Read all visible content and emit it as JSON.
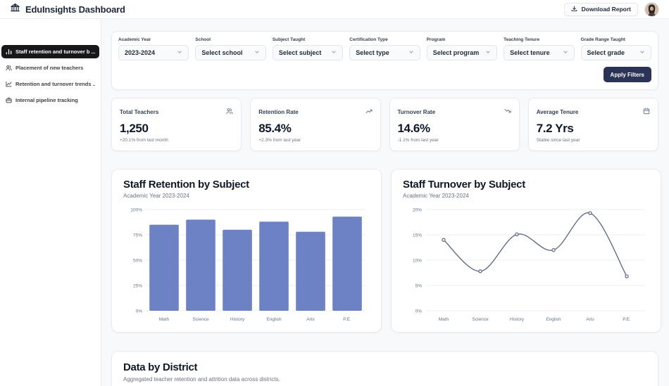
{
  "header": {
    "title": "EduInsights Dashboard",
    "download_button": "Download Report"
  },
  "sidebar": {
    "items": [
      {
        "label": "Staff retention and turnover b ...",
        "icon": "bar-chart-icon",
        "active": true
      },
      {
        "label": "Placement of new teachers",
        "icon": "users-icon",
        "active": false
      },
      {
        "label": "Retention and turnover trends ...",
        "icon": "line-chart-icon",
        "active": false
      },
      {
        "label": "Internal pipeline tracking",
        "icon": "briefcase-icon",
        "active": false
      }
    ]
  },
  "filters": {
    "fields": [
      {
        "label": "Academic Year",
        "value": "2023-2024"
      },
      {
        "label": "School",
        "value": "Select school"
      },
      {
        "label": "Subject Taught",
        "value": "Select subject"
      },
      {
        "label": "Certification Type",
        "value": "Select type"
      },
      {
        "label": "Program",
        "value": "Select program"
      },
      {
        "label": "Teaching Tenure",
        "value": "Select tenure"
      },
      {
        "label": "Grade Range Taught",
        "value": "Select grade"
      }
    ],
    "apply_label": "Apply Filters"
  },
  "stats": [
    {
      "title": "Total Teachers",
      "value": "1,250",
      "delta": "+20.1% from last month",
      "icon": "users-icon"
    },
    {
      "title": "Retention Rate",
      "value": "85.4%",
      "delta": "+2.3% from last year",
      "icon": "trending-up-icon"
    },
    {
      "title": "Turnover Rate",
      "value": "14.6%",
      "delta": "-1.1% from last year",
      "icon": "trending-down-icon"
    },
    {
      "title": "Average Tenure",
      "value": "7.2 Yrs",
      "delta": "Stable since last year",
      "icon": "calendar-icon"
    }
  ],
  "chart_data": [
    {
      "type": "bar",
      "title": "Staff Retention by Subject",
      "subtitle": "Academic Year 2023-2024",
      "categories": [
        "Math",
        "Science",
        "History",
        "English",
        "Arts",
        "P.E."
      ],
      "values": [
        85,
        90,
        80,
        88,
        78,
        93
      ],
      "ylim": [
        0,
        100
      ],
      "yticks": [
        0,
        25,
        50,
        75,
        100
      ],
      "ytick_suffix": "%",
      "grid": true,
      "legend": "none",
      "color": "#6d82c4"
    },
    {
      "type": "line",
      "title": "Staff Turnover by Subject",
      "subtitle": "Academic Year 2023-2024",
      "categories": [
        "Math",
        "Science",
        "History",
        "English",
        "Arts",
        "P.E."
      ],
      "values": [
        14,
        7.8,
        15.1,
        12,
        19.3,
        6.8
      ],
      "ylim": [
        0,
        20
      ],
      "yticks": [
        0,
        5,
        10,
        15,
        20
      ],
      "ytick_suffix": "%",
      "grid": true,
      "legend": "none",
      "color": "#5a6384"
    }
  ],
  "district_section": {
    "title": "Data by District",
    "subtitle": "Aggregated teacher retention and attrition data across districts."
  },
  "colors": {
    "sidebar_active": "#18181b",
    "apply_button": "#2b3356",
    "bar_fill": "#6d82c4",
    "line_stroke": "#5a6384",
    "page_background": "#f8f9fb"
  }
}
